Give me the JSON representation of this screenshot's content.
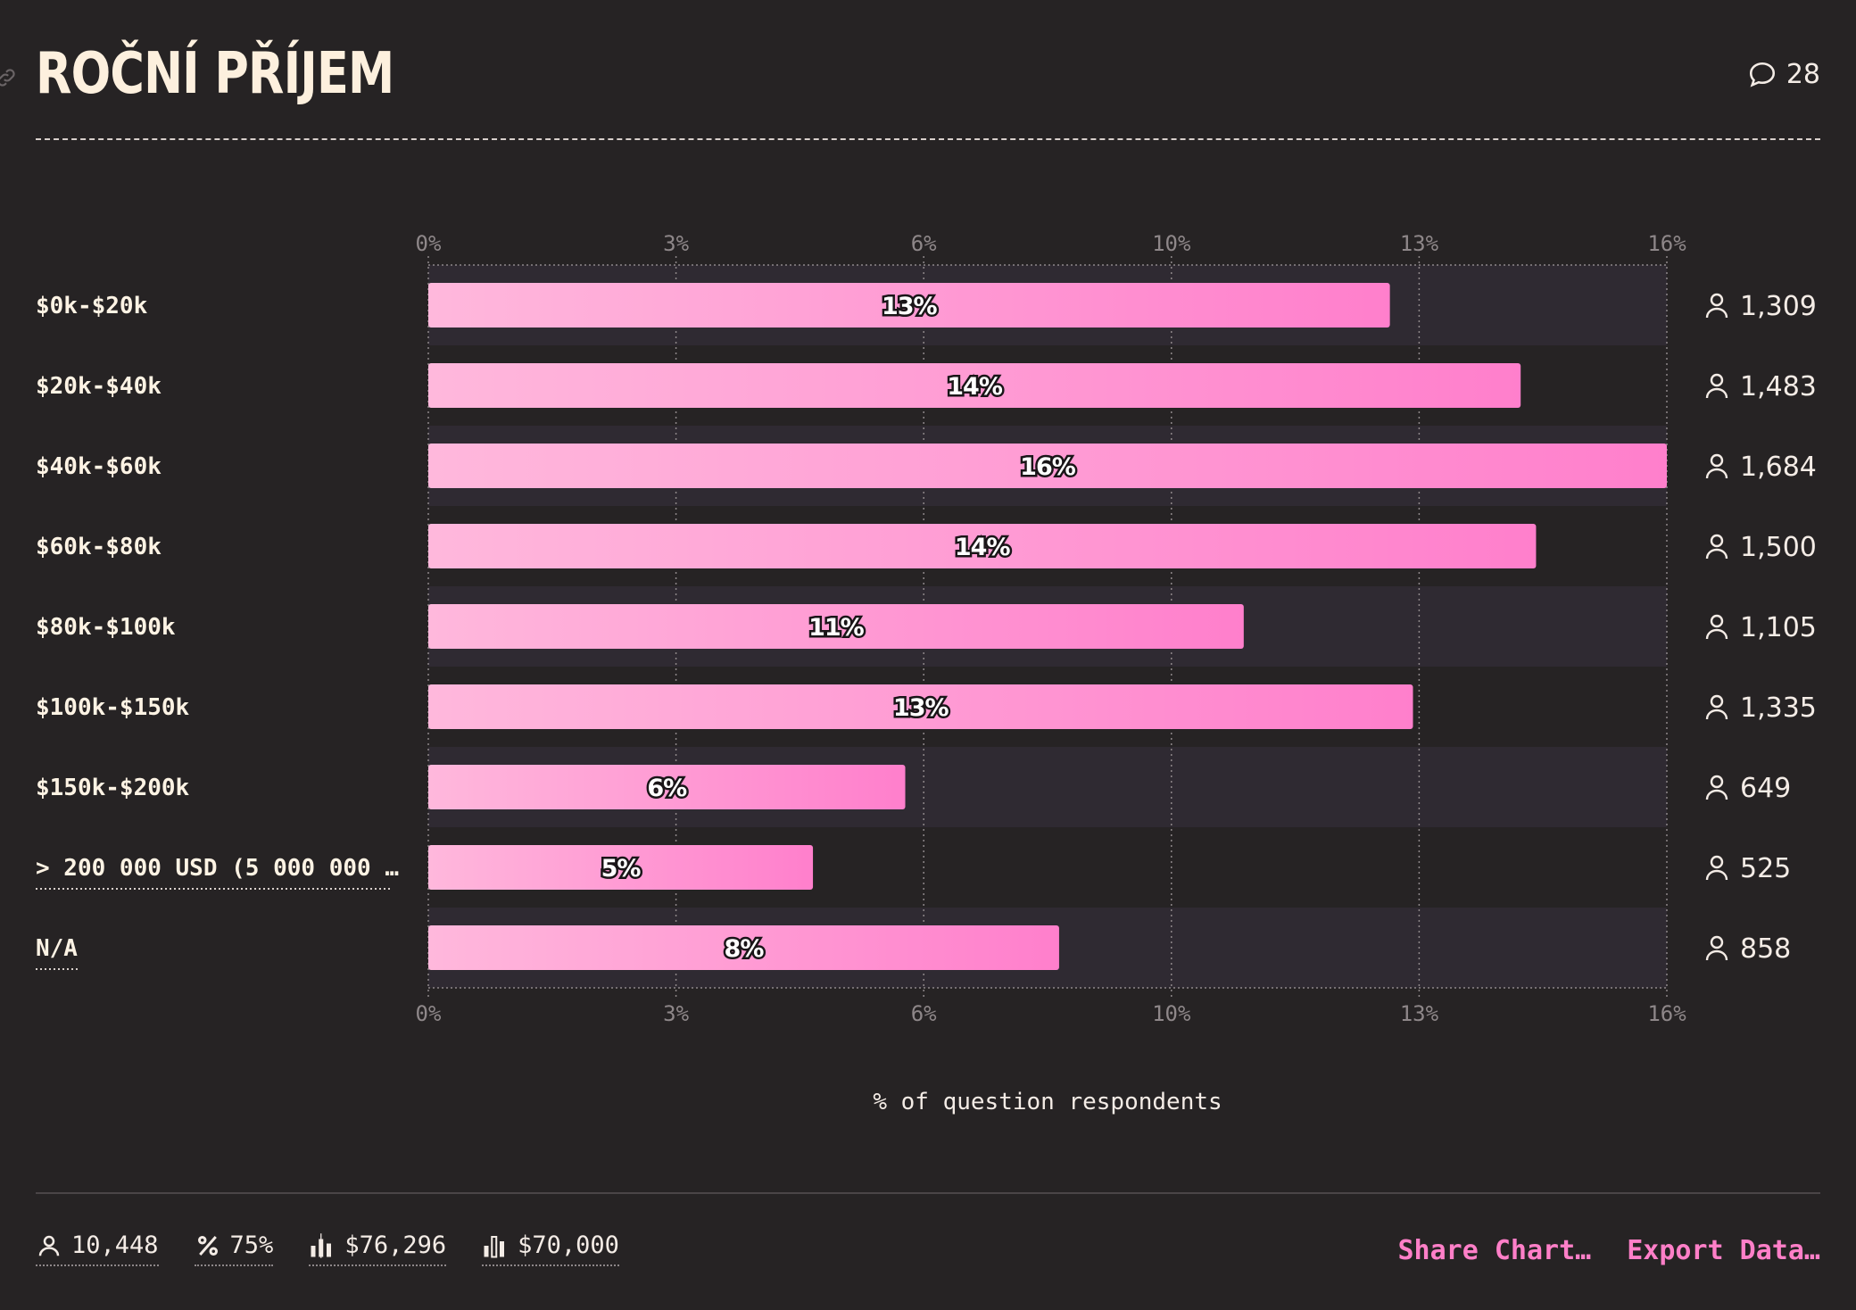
{
  "header": {
    "title": "ROČNÍ PŘÍJEM",
    "comment_count": "28"
  },
  "chart_data": {
    "type": "bar",
    "orientation": "horizontal",
    "categories": [
      "$0k-$20k",
      "$20k-$40k",
      "$40k-$60k",
      "$60k-$80k",
      "$80k-$100k",
      "$100k-$150k",
      "$150k-$200k",
      "> 200 000 USD (5 000 000 …",
      "N/A"
    ],
    "values": [
      12.5,
      14.2,
      16.1,
      14.4,
      10.6,
      12.8,
      6.2,
      5.0,
      8.2
    ],
    "data_labels": [
      "13%",
      "14%",
      "16%",
      "14%",
      "11%",
      "13%",
      "6%",
      "5%",
      "8%"
    ],
    "counts": [
      "1,309",
      "1,483",
      "1,684",
      "1,500",
      "1,105",
      "1,335",
      "649",
      "525",
      "858"
    ],
    "xlim": [
      0,
      16.1
    ],
    "ticks": [
      {
        "value": 0,
        "label": "0%"
      },
      {
        "value": 3.22,
        "label": "3%"
      },
      {
        "value": 6.44,
        "label": "6%"
      },
      {
        "value": 9.66,
        "label": "10%"
      },
      {
        "value": 12.88,
        "label": "13%"
      },
      {
        "value": 16.1,
        "label": "16%"
      }
    ],
    "xlabel": "% of question respondents",
    "grid": true,
    "colors": {
      "bar_start": "#ffb8dc",
      "bar_end": "#ff7fcc",
      "row_alt": "#2f2a32",
      "grid": "#8e8789"
    }
  },
  "footer": {
    "stats": [
      {
        "icon": "user-icon",
        "value": "10,448"
      },
      {
        "icon": "percent-icon",
        "value": "75%"
      },
      {
        "icon": "average-bar-icon",
        "value": "$76,296"
      },
      {
        "icon": "median-bar-icon",
        "value": "$70,000"
      }
    ],
    "share_label": "Share Chart…",
    "export_label": "Export Data…"
  }
}
